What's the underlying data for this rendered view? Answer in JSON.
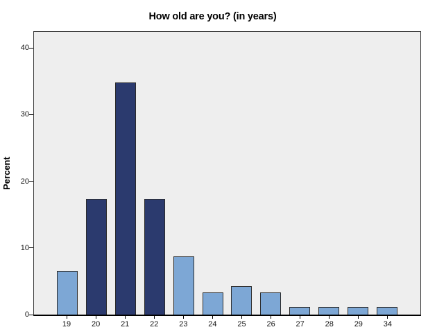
{
  "chart_data": {
    "type": "bar",
    "title": "How old are you? (in years)",
    "xlabel": "",
    "ylabel": "Percent",
    "categories": [
      "19",
      "20",
      "21",
      "22",
      "23",
      "24",
      "25",
      "26",
      "27",
      "28",
      "29",
      "34"
    ],
    "values": [
      6.5,
      17.4,
      34.8,
      17.4,
      8.7,
      3.3,
      4.3,
      3.3,
      1.1,
      1.1,
      1.1,
      1.1
    ],
    "bar_colors": [
      "#7da7d5",
      "#2b3a6e",
      "#2b3a6e",
      "#2b3a6e",
      "#7da7d5",
      "#7da7d5",
      "#7da7d5",
      "#7da7d5",
      "#7da7d5",
      "#7da7d5",
      "#7da7d5",
      "#7da7d5"
    ],
    "yticks": [
      0,
      10,
      20,
      30,
      40
    ],
    "ylim": [
      0,
      42.4
    ],
    "grid": false,
    "legend": false,
    "colors": {
      "bar_light": "#7da7d5",
      "bar_dark": "#2b3a6e",
      "bar_border": "#2b2b2b",
      "plot_background": "#eeeeee",
      "plot_border": "#3a3a3a",
      "axis_line": "#000000",
      "figure_background": "#ffffff"
    }
  }
}
